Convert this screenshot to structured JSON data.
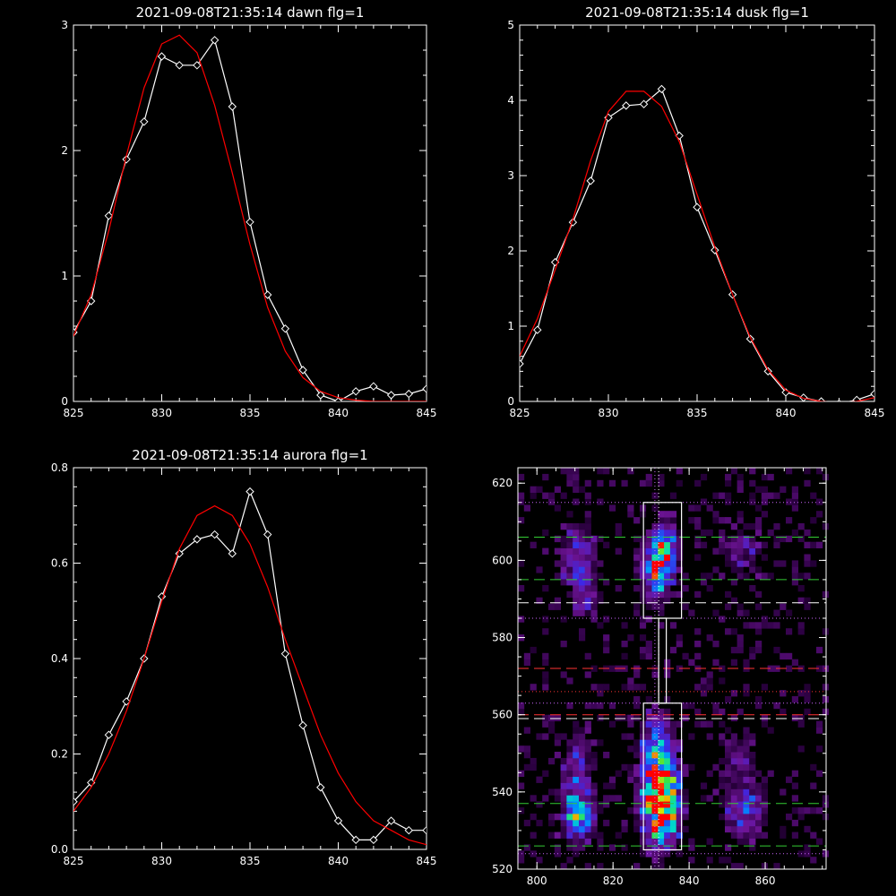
{
  "chart_data": [
    {
      "type": "line",
      "title": "2021-09-08T21:35:14 dawn flg=1",
      "xlim": [
        825,
        845
      ],
      "ylim": [
        0,
        3
      ],
      "xticks": [
        "825",
        "830",
        "835",
        "840",
        "845"
      ],
      "yticks": [
        "0",
        "1",
        "2",
        "3"
      ],
      "series": [
        {
          "color": "#ffffff",
          "marker": "diamond",
          "x": [
            825,
            826,
            827,
            828,
            829,
            830,
            831,
            832,
            833,
            834,
            835,
            836,
            837,
            838,
            839,
            840,
            841,
            842,
            843,
            844,
            845
          ],
          "y": [
            0.55,
            0.8,
            1.48,
            1.93,
            2.23,
            2.75,
            2.68,
            2.68,
            2.88,
            2.35,
            1.43,
            0.85,
            0.58,
            0.25,
            0.05,
            0.0,
            0.08,
            0.12,
            0.05,
            0.06,
            0.1
          ]
        },
        {
          "color": "#ff0000",
          "marker": "none",
          "x": [
            825,
            826,
            827,
            828,
            829,
            830,
            831,
            832,
            833,
            834,
            835,
            836,
            837,
            838,
            839,
            840,
            841,
            842,
            843,
            844,
            845
          ],
          "y": [
            0.52,
            0.85,
            1.36,
            1.96,
            2.5,
            2.85,
            2.92,
            2.78,
            2.36,
            1.82,
            1.25,
            0.75,
            0.4,
            0.19,
            0.08,
            0.03,
            0.01,
            0.0,
            0.0,
            0.0,
            0.0
          ]
        }
      ]
    },
    {
      "type": "line",
      "title": "2021-09-08T21:35:14 dusk flg=1",
      "xlim": [
        825,
        845
      ],
      "ylim": [
        0,
        5
      ],
      "xticks": [
        "825",
        "830",
        "835",
        "840",
        "845"
      ],
      "yticks": [
        "0",
        "1",
        "2",
        "3",
        "4",
        "5"
      ],
      "series": [
        {
          "color": "#ffffff",
          "marker": "diamond",
          "x": [
            825,
            826,
            827,
            828,
            829,
            830,
            831,
            832,
            833,
            834,
            835,
            836,
            837,
            838,
            839,
            840,
            841,
            842,
            843,
            844,
            845
          ],
          "y": [
            0.5,
            0.95,
            1.85,
            2.38,
            2.93,
            3.77,
            3.93,
            3.95,
            4.15,
            3.53,
            2.58,
            2.01,
            1.42,
            0.83,
            0.4,
            0.12,
            0.05,
            0.0,
            -0.03,
            0.02,
            0.1
          ]
        },
        {
          "color": "#ff0000",
          "marker": "none",
          "x": [
            825,
            826,
            827,
            828,
            829,
            830,
            831,
            832,
            833,
            834,
            835,
            836,
            837,
            838,
            839,
            840,
            841,
            842,
            843,
            844,
            845
          ],
          "y": [
            0.6,
            1.1,
            1.75,
            2.42,
            3.2,
            3.85,
            4.12,
            4.12,
            3.92,
            3.45,
            2.75,
            2.05,
            1.42,
            0.85,
            0.42,
            0.15,
            0.04,
            0.0,
            -0.02,
            0.0,
            0.05
          ]
        }
      ]
    },
    {
      "type": "line",
      "title": "2021-09-08T21:35:14 aurora flg=1",
      "xlim": [
        825,
        845
      ],
      "ylim": [
        0,
        0.8
      ],
      "xticks": [
        "825",
        "830",
        "835",
        "840",
        "845"
      ],
      "yticks": [
        "0.0",
        "0.2",
        "0.4",
        "0.6",
        "0.8"
      ],
      "series": [
        {
          "color": "#ffffff",
          "marker": "diamond",
          "x": [
            825,
            826,
            827,
            828,
            829,
            830,
            831,
            832,
            833,
            834,
            835,
            836,
            837,
            838,
            839,
            840,
            841,
            842,
            843,
            844,
            845
          ],
          "y": [
            0.1,
            0.14,
            0.24,
            0.31,
            0.4,
            0.53,
            0.62,
            0.65,
            0.66,
            0.62,
            0.75,
            0.66,
            0.41,
            0.26,
            0.13,
            0.06,
            0.02,
            0.02,
            0.06,
            0.04,
            0.04
          ]
        },
        {
          "color": "#ff0000",
          "marker": "none",
          "x": [
            825,
            826,
            827,
            828,
            829,
            830,
            831,
            832,
            833,
            834,
            835,
            836,
            837,
            838,
            839,
            840,
            841,
            842,
            843,
            844,
            845
          ],
          "y": [
            0.08,
            0.13,
            0.2,
            0.29,
            0.4,
            0.52,
            0.63,
            0.7,
            0.72,
            0.7,
            0.64,
            0.55,
            0.44,
            0.34,
            0.24,
            0.16,
            0.1,
            0.06,
            0.04,
            0.02,
            0.01
          ]
        }
      ]
    },
    {
      "type": "heatmap",
      "title": "",
      "xlim": [
        795,
        876
      ],
      "ylim": [
        520,
        624
      ],
      "xticks": [
        "800",
        "820",
        "840",
        "860"
      ],
      "yticks": [
        "520",
        "540",
        "560",
        "580",
        "600",
        "620"
      ],
      "blobs": [
        {
          "x": 832,
          "y": 535,
          "sx": 3.0,
          "sy": 7,
          "peak": 1.0
        },
        {
          "x": 831,
          "y": 546,
          "sx": 3.0,
          "sy": 9,
          "peak": 0.6
        },
        {
          "x": 832,
          "y": 601,
          "sx": 2.8,
          "sy": 5,
          "peak": 0.72
        },
        {
          "x": 830,
          "y": 594,
          "sx": 2.5,
          "sy": 5,
          "peak": 0.38
        },
        {
          "x": 810,
          "y": 533,
          "sx": 3.0,
          "sy": 5,
          "peak": 0.55
        },
        {
          "x": 810,
          "y": 546,
          "sx": 3.0,
          "sy": 6,
          "peak": 0.3
        },
        {
          "x": 810,
          "y": 600,
          "sx": 3.0,
          "sy": 5,
          "peak": 0.4
        },
        {
          "x": 812,
          "y": 590,
          "sx": 3.0,
          "sy": 4,
          "peak": 0.2
        },
        {
          "x": 854,
          "y": 534,
          "sx": 3.5,
          "sy": 5,
          "peak": 0.38
        },
        {
          "x": 852,
          "y": 548,
          "sx": 4.0,
          "sy": 6,
          "peak": 0.18
        },
        {
          "x": 854,
          "y": 602,
          "sx": 4.0,
          "sy": 5,
          "peak": 0.2
        }
      ],
      "boxes": [
        {
          "x0": 828,
          "x1": 838,
          "y0": 585,
          "y1": 615,
          "color": "#ffffff"
        },
        {
          "x0": 828,
          "x1": 838,
          "y0": 525,
          "y1": 563,
          "color": "#ffffff"
        },
        {
          "x0": 832,
          "x1": 834,
          "y0": 563,
          "y1": 585,
          "color": "#ffffff"
        }
      ],
      "hlines": [
        {
          "y": 615,
          "color": "#cc66ff",
          "style": "dotted"
        },
        {
          "y": 606,
          "color": "#33cc33",
          "style": "dashed"
        },
        {
          "y": 595,
          "color": "#33cc33",
          "style": "dashed"
        },
        {
          "y": 589,
          "color": "#ffffff",
          "style": "dashed"
        },
        {
          "y": 585,
          "color": "#cc66ff",
          "style": "dotted"
        },
        {
          "y": 572,
          "color": "#ff3333",
          "style": "dashed"
        },
        {
          "y": 566,
          "color": "#ff3333",
          "style": "dotted"
        },
        {
          "y": 563,
          "color": "#cc66ff",
          "style": "dotted"
        },
        {
          "y": 560,
          "color": "#ff3333",
          "style": "dashed"
        },
        {
          "y": 559,
          "color": "#ffffff",
          "style": "dashed"
        },
        {
          "y": 537,
          "color": "#33cc33",
          "style": "dashed"
        },
        {
          "y": 526,
          "color": "#33cc33",
          "style": "dashed"
        },
        {
          "y": 524,
          "color": "#cc66ff",
          "style": "dotted"
        }
      ],
      "vlines": [
        {
          "x": 831,
          "color": "#cc66ff",
          "style": "dotted"
        },
        {
          "x": 832,
          "color": "#ffffff",
          "style": "dotted"
        }
      ]
    }
  ]
}
